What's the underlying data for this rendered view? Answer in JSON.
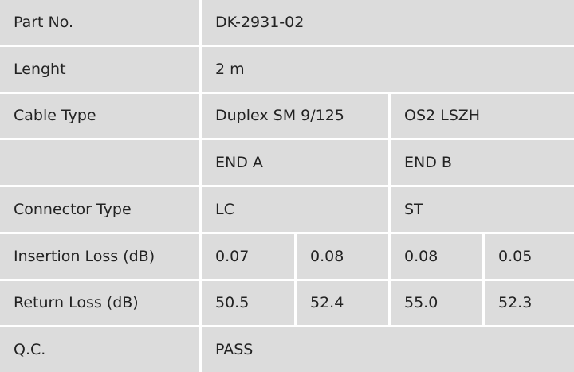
{
  "rows": {
    "part_no": {
      "label": "Part No.",
      "value": "DK-2931-02"
    },
    "length": {
      "label": "Lenght",
      "value": "2 m"
    },
    "cable_type": {
      "label": "Cable Type",
      "value_a": "Duplex SM 9/125",
      "value_b": "OS2 LSZH"
    },
    "ends": {
      "label": "",
      "end_a": "END A",
      "end_b": "END B"
    },
    "connector_type": {
      "label": "Connector Type",
      "end_a": "LC",
      "end_b": "ST"
    },
    "insertion_loss": {
      "label": "Insertion Loss (dB)",
      "values": [
        "0.07",
        "0.08",
        "0.08",
        "0.05"
      ]
    },
    "return_loss": {
      "label": "Return Loss (dB)",
      "values": [
        "50.5",
        "52.4",
        "55.0",
        "52.3"
      ]
    },
    "qc": {
      "label": "Q.C.",
      "value": "PASS"
    }
  },
  "colors": {
    "cell_background": "#dcdcdc",
    "border": "#ffffff",
    "text": "#222222"
  }
}
